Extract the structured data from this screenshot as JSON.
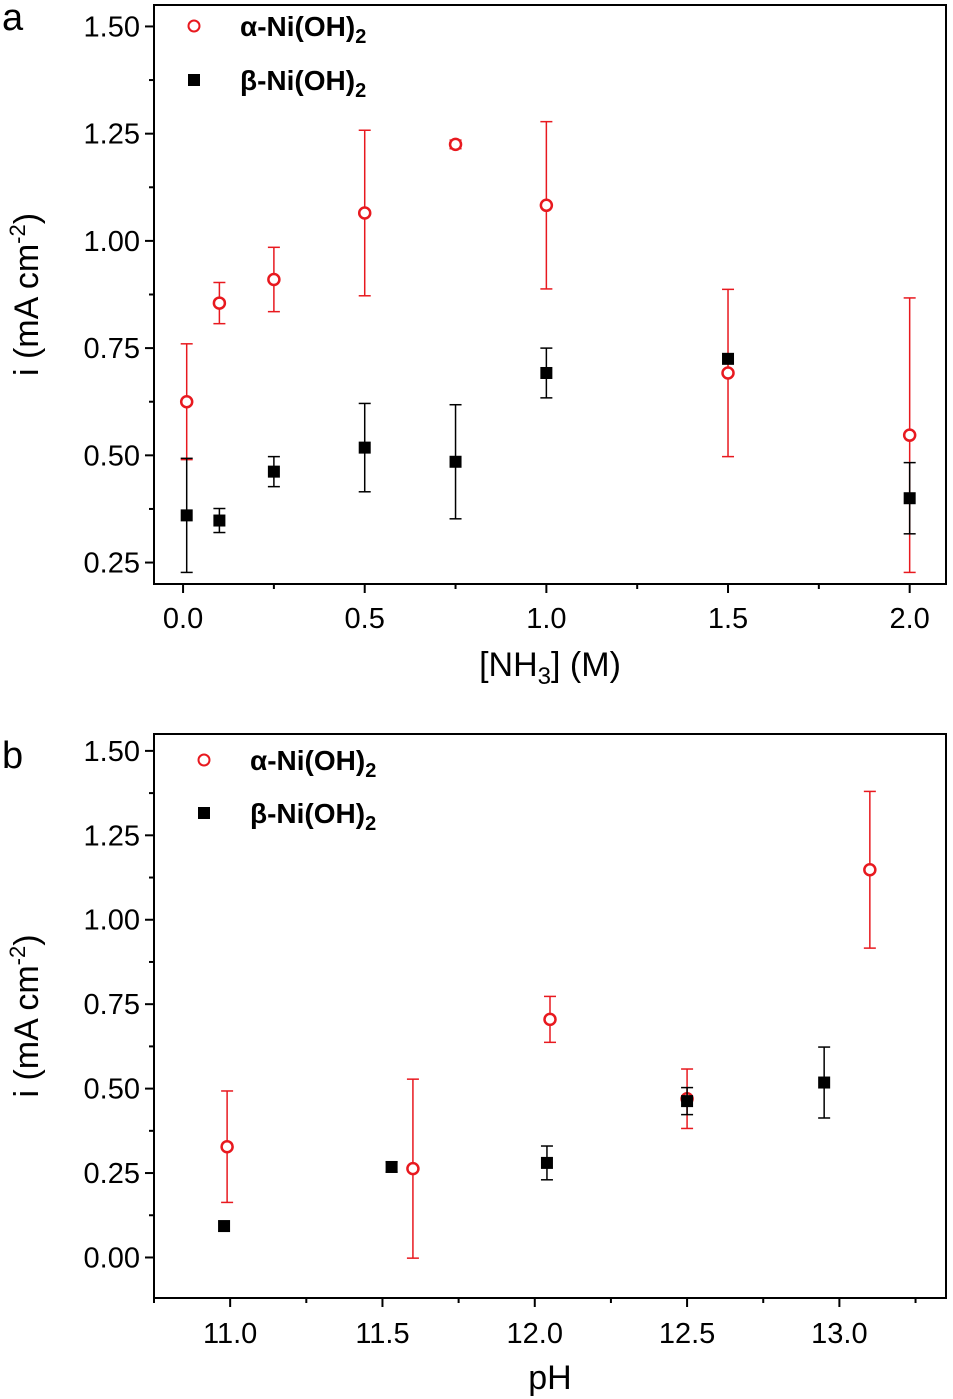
{
  "chart_data": [
    {
      "type": "scatter",
      "panel_letter": "a",
      "xlabel_main": "[NH",
      "xlabel_sub": "3",
      "xlabel_tail": "] (M)",
      "ylabel_main": "i (mA cm",
      "ylabel_sup": "-2",
      "ylabel_tail": ")",
      "xlim": [
        -0.08,
        2.1
      ],
      "ylim": [
        0.2,
        1.55
      ],
      "xticks": [
        0.0,
        0.5,
        1.0,
        1.5,
        2.0
      ],
      "xtick_labels": [
        "0.0",
        "0.5",
        "1.0",
        "1.5",
        "2.0"
      ],
      "yticks": [
        0.25,
        0.5,
        0.75,
        1.0,
        1.25,
        1.5
      ],
      "ytick_labels": [
        "0.25",
        "0.50",
        "0.75",
        "1.00",
        "1.25",
        "1.50"
      ],
      "grid": false,
      "legend_position": "top-left",
      "series": [
        {
          "name_main": "α-Ni(OH)",
          "name_sub": "2",
          "marker": "open-circle",
          "color": "#e8191f",
          "x": [
            0.01,
            0.1,
            0.25,
            0.5,
            0.75,
            1.0,
            1.5,
            2.0
          ],
          "y": [
            0.625,
            0.855,
            0.91,
            1.065,
            1.225,
            1.083,
            0.692,
            0.547
          ],
          "err": [
            0.135,
            0.048,
            0.075,
            0.193,
            0.01,
            0.195,
            0.195,
            0.32
          ]
        },
        {
          "name_main": "β-Ni(OH)",
          "name_sub": "2",
          "marker": "filled-square",
          "color": "#000000",
          "x": [
            0.01,
            0.1,
            0.25,
            0.5,
            0.75,
            1.0,
            1.5,
            2.0
          ],
          "y": [
            0.36,
            0.348,
            0.462,
            0.518,
            0.485,
            0.692,
            0.725,
            0.4
          ],
          "err": [
            0.133,
            0.028,
            0.035,
            0.103,
            0.133,
            0.058,
            0.0,
            0.083
          ]
        }
      ]
    },
    {
      "type": "scatter",
      "panel_letter": "b",
      "xlabel_main": "pH",
      "xlabel_sub": "",
      "xlabel_tail": "",
      "ylabel_main": "i (mA cm",
      "ylabel_sup": "-2",
      "ylabel_tail": ")",
      "xlim": [
        10.75,
        13.35
      ],
      "ylim": [
        -0.12,
        1.55
      ],
      "xticks": [
        11.0,
        11.5,
        12.0,
        12.5,
        13.0
      ],
      "xtick_labels": [
        "11.0",
        "11.5",
        "12.0",
        "12.5",
        "13.0"
      ],
      "yticks": [
        0.0,
        0.25,
        0.5,
        0.75,
        1.0,
        1.25,
        1.5
      ],
      "ytick_labels": [
        "0.00",
        "0.25",
        "0.50",
        "0.75",
        "1.00",
        "1.25",
        "1.50"
      ],
      "grid": false,
      "legend_position": "top-left",
      "series": [
        {
          "name_main": "α-Ni(OH)",
          "name_sub": "2",
          "marker": "open-circle",
          "color": "#e8191f",
          "x": [
            10.99,
            11.6,
            12.05,
            12.5,
            13.1
          ],
          "y": [
            0.328,
            0.263,
            0.705,
            0.47,
            1.148
          ],
          "err": [
            0.165,
            0.265,
            0.068,
            0.088,
            0.232
          ]
        },
        {
          "name_main": "β-Ni(OH)",
          "name_sub": "2",
          "marker": "filled-square",
          "color": "#000000",
          "x": [
            10.98,
            11.53,
            12.04,
            12.5,
            12.95
          ],
          "y": [
            0.093,
            0.268,
            0.28,
            0.463,
            0.518
          ],
          "err": [
            0.0,
            0.015,
            0.05,
            0.04,
            0.105
          ]
        }
      ]
    }
  ]
}
